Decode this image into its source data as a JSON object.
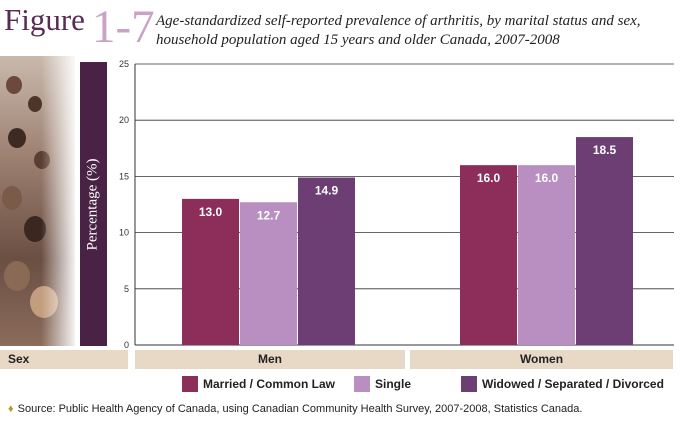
{
  "header": {
    "figure_word": "Figure",
    "figure_number": "1-7",
    "title": "Age-standardized self-reported prevalence of arthritis, by marital status and sex, household population aged 15 years and older Canada, 2007-2008"
  },
  "axis": {
    "ylabel": "Percentage (%)",
    "xlabel": "Sex"
  },
  "colors": {
    "married": "#8c2d5a",
    "single": "#b98fc2",
    "widowed": "#6d3e74",
    "strip": "#e8d9c6",
    "ylabel_bar": "#4a2245"
  },
  "chart_data": {
    "type": "bar",
    "categories": [
      "Men",
      "Women"
    ],
    "series": [
      {
        "name": "Married / Common Law",
        "values": [
          13.0,
          16.0
        ]
      },
      {
        "name": "Single",
        "values": [
          12.7,
          16.0
        ]
      },
      {
        "name": "Widowed / Separated / Divorced",
        "values": [
          14.9,
          18.5
        ]
      }
    ],
    "ylim": [
      0,
      25
    ],
    "yticks": [
      0,
      5,
      10,
      15,
      20,
      25
    ],
    "grid": true,
    "legend": "bottom",
    "value_labels": [
      [
        "13.0",
        "16.0"
      ],
      [
        "12.7",
        "16.0"
      ],
      [
        "14.9",
        "18.5"
      ]
    ]
  },
  "source": "Source: Public Health Agency of Canada, using Canadian Community Health Survey, 2007-2008, Statistics Canada."
}
